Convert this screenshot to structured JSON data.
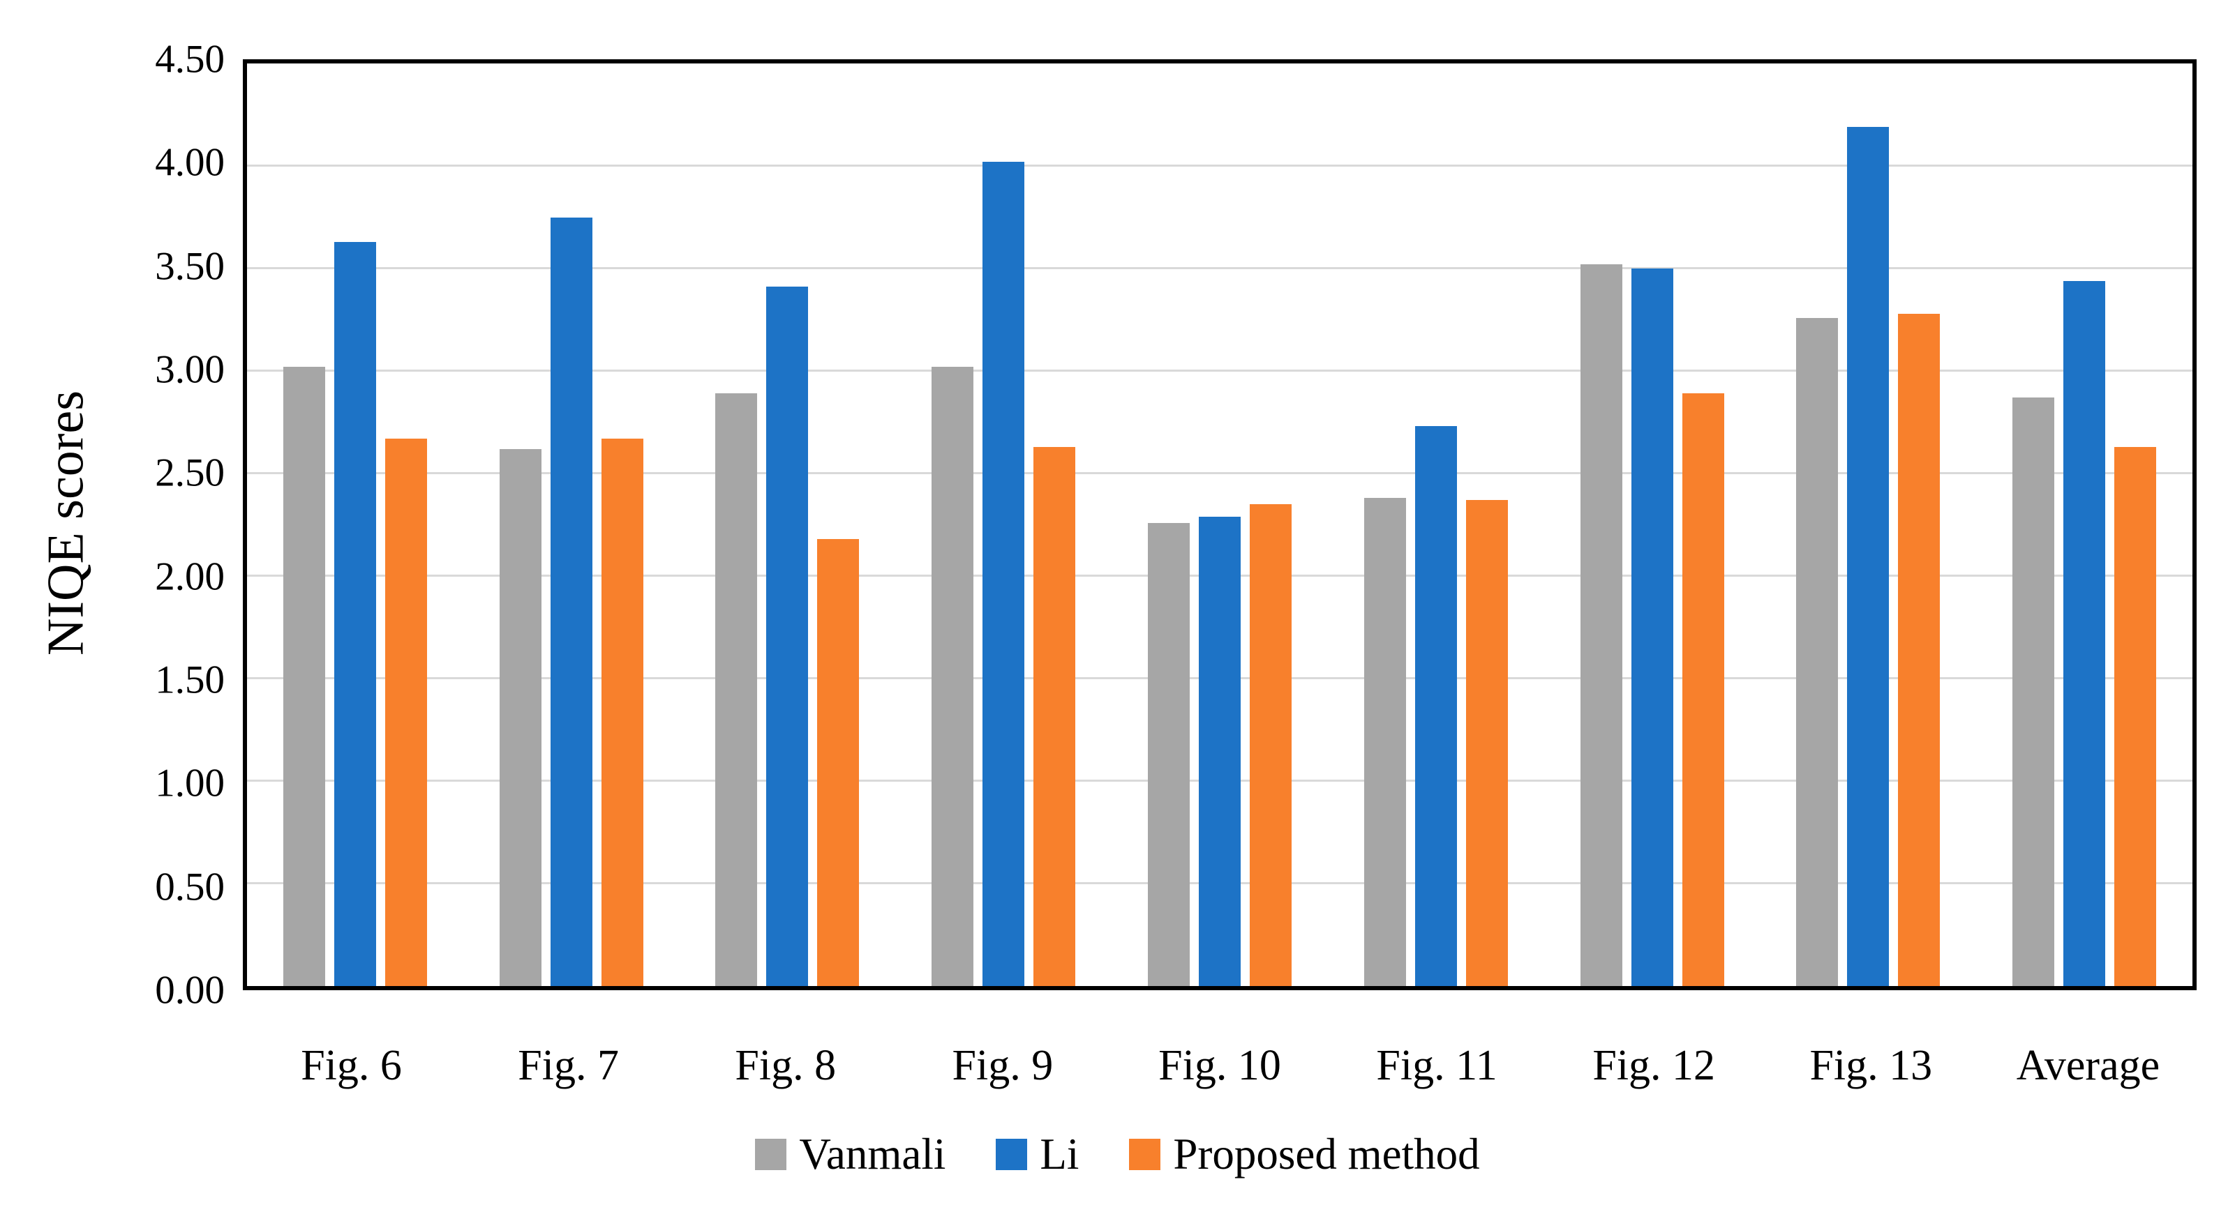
{
  "figure": {
    "background": "#FFFFFF",
    "axis_color": "#000000",
    "gridline_color": "#D9D9D9",
    "tick_label_color": "#000000"
  },
  "chart_data": {
    "type": "bar",
    "title": "",
    "xlabel": "",
    "ylabel": "NIQE scores",
    "ylim": [
      0,
      4.5
    ],
    "ytick_step": 0.5,
    "ytick_labels": [
      "0.00",
      "0.50",
      "1.00",
      "1.50",
      "2.00",
      "2.50",
      "3.00",
      "3.50",
      "4.00",
      "4.50"
    ],
    "grid": true,
    "legend_position": "bottom",
    "categories": [
      "Fig. 6",
      "Fig. 7",
      "Fig. 8",
      "Fig. 9",
      "Fig. 10",
      "Fig. 11",
      "Fig. 12",
      "Fig. 13",
      "Average"
    ],
    "series": [
      {
        "name": "Vanmali",
        "color": "#A6A6A6",
        "values": [
          3.02,
          2.62,
          2.89,
          3.02,
          2.26,
          2.38,
          3.52,
          3.26,
          2.87
        ]
      },
      {
        "name": "Li",
        "color": "#1D73C6",
        "values": [
          3.63,
          3.75,
          3.41,
          4.02,
          2.29,
          2.73,
          3.5,
          4.19,
          3.44
        ]
      },
      {
        "name": "Proposed method",
        "color": "#F8802C",
        "values": [
          2.67,
          2.67,
          2.18,
          2.63,
          2.35,
          2.37,
          2.89,
          3.28,
          2.63
        ]
      }
    ]
  }
}
